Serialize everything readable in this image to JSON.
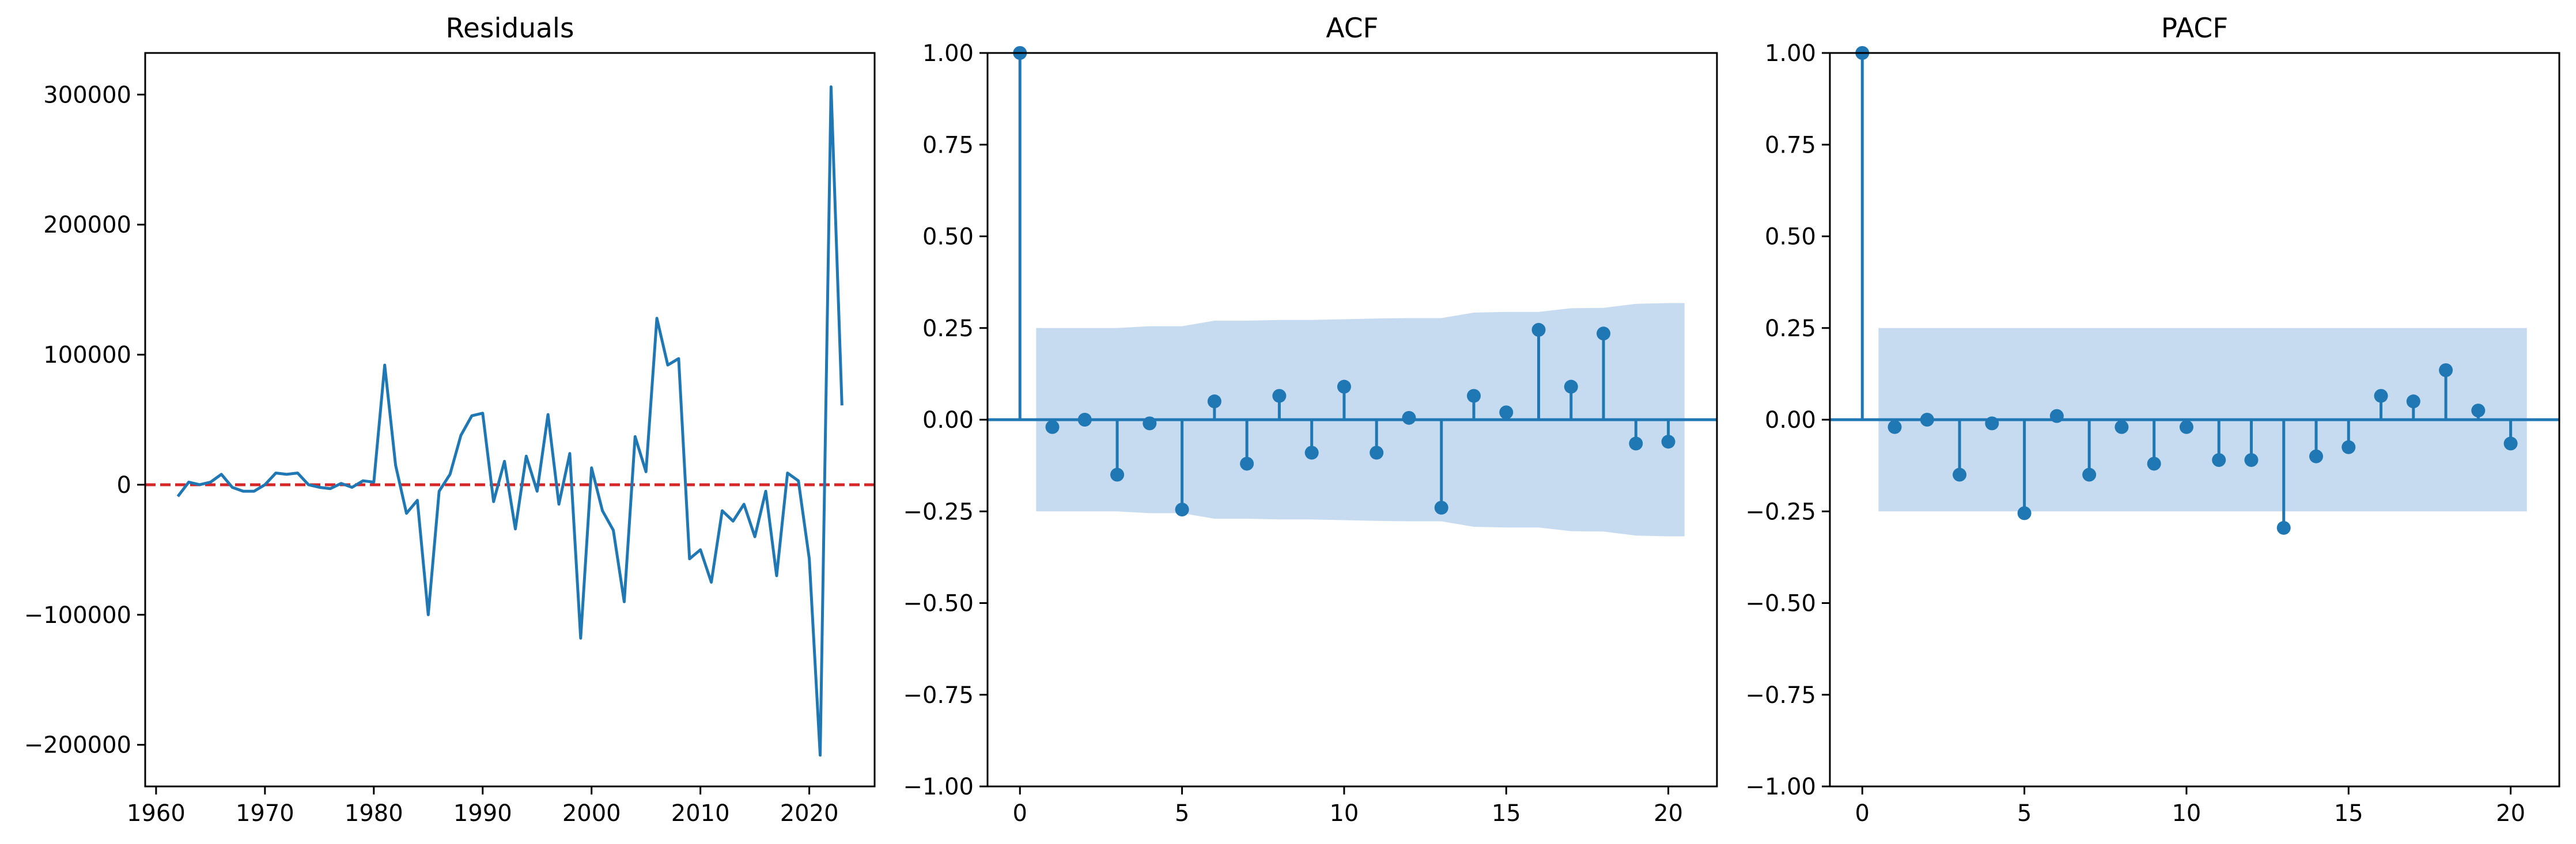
{
  "colors": {
    "line": "#1f77b4",
    "band": "#c6dbef",
    "zero_line": "#d62728",
    "axis": "#000000"
  },
  "chart_data": [
    {
      "type": "line",
      "title": "Residuals",
      "xlabel": "",
      "ylabel": "",
      "xlim": [
        1959,
        2026
      ],
      "ylim": [
        -232000,
        332000
      ],
      "xticks": [
        1960,
        1970,
        1980,
        1990,
        2000,
        2010,
        2020
      ],
      "yticks": [
        -200000,
        -100000,
        0,
        100000,
        200000,
        300000
      ],
      "ytick_labels": [
        "−200000",
        "−100000",
        "0",
        "100000",
        "200000",
        "300000"
      ],
      "reference_line": {
        "y": 0,
        "style": "dashed",
        "color": "red"
      },
      "series": [
        {
          "x": [
            1962,
            1963,
            1964,
            1965,
            1966,
            1967,
            1968,
            1969,
            1970,
            1971,
            1972,
            1973,
            1974,
            1975,
            1976,
            1977,
            1978,
            1979,
            1980,
            1981,
            1982,
            1983,
            1984,
            1985,
            1986,
            1987,
            1988,
            1989,
            1990,
            1991,
            1992,
            1993,
            1994,
            1995,
            1996,
            1997,
            1998,
            1999,
            2000,
            2001,
            2002,
            2003,
            2004,
            2005,
            2006,
            2007,
            2008,
            2009,
            2010,
            2011,
            2012,
            2013,
            2014,
            2015,
            2016,
            2017,
            2018,
            2019,
            2020,
            2021,
            2022,
            2023
          ],
          "y": [
            -9000,
            2000,
            0,
            2000,
            8000,
            -2000,
            -5000,
            -5000,
            0,
            9000,
            8000,
            9000,
            0,
            -2000,
            -3000,
            1000,
            -2000,
            3000,
            2000,
            92000,
            15000,
            -22000,
            -12000,
            -100000,
            -5000,
            8000,
            38000,
            53000,
            55000,
            -13000,
            18000,
            -34000,
            22000,
            -5000,
            54000,
            -15000,
            24000,
            -118000,
            13000,
            -20000,
            -35000,
            -90000,
            37000,
            10000,
            128000,
            92000,
            97000,
            -57000,
            -50000,
            -75000,
            -20000,
            -28000,
            -15000,
            -40000,
            -5000,
            -70000,
            9000,
            3000,
            -57000,
            -208000,
            306000,
            61000
          ]
        }
      ]
    },
    {
      "type": "stem",
      "title": "ACF",
      "xlabel": "",
      "ylabel": "",
      "xlim": [
        -1,
        21.5
      ],
      "ylim": [
        -1,
        1
      ],
      "xticks": [
        0,
        5,
        10,
        15,
        20
      ],
      "yticks": [
        -1.0,
        -0.75,
        -0.5,
        -0.25,
        0.0,
        0.25,
        0.5,
        0.75,
        1.0
      ],
      "ytick_labels": [
        "−1.00",
        "−0.75",
        "−0.50",
        "−0.25",
        "0.00",
        "0.25",
        "0.50",
        "0.75",
        "1.00"
      ],
      "lags": [
        0,
        1,
        2,
        3,
        4,
        5,
        6,
        7,
        8,
        9,
        10,
        11,
        12,
        13,
        14,
        15,
        16,
        17,
        18,
        19,
        20
      ],
      "values": [
        1.0,
        -0.02,
        0.0,
        -0.15,
        -0.01,
        -0.245,
        0.05,
        -0.12,
        0.065,
        -0.09,
        0.09,
        -0.09,
        0.005,
        -0.24,
        0.065,
        0.02,
        0.245,
        0.09,
        0.235,
        -0.065,
        -0.06
      ],
      "confidence_band": {
        "lags": [
          0.5,
          1,
          2,
          3,
          4,
          5,
          6,
          7,
          8,
          9,
          10,
          11,
          12,
          13,
          14,
          15,
          16,
          17,
          18,
          19,
          20,
          20.5
        ],
        "upper": [
          0.25,
          0.25,
          0.25,
          0.25,
          0.255,
          0.255,
          0.27,
          0.27,
          0.272,
          0.272,
          0.274,
          0.276,
          0.277,
          0.277,
          0.292,
          0.294,
          0.294,
          0.304,
          0.305,
          0.316,
          0.318,
          0.318
        ]
      }
    },
    {
      "type": "stem",
      "title": "PACF",
      "xlabel": "",
      "ylabel": "",
      "xlim": [
        -1,
        21.5
      ],
      "ylim": [
        -1,
        1
      ],
      "xticks": [
        0,
        5,
        10,
        15,
        20
      ],
      "yticks": [
        -1.0,
        -0.75,
        -0.5,
        -0.25,
        0.0,
        0.25,
        0.5,
        0.75,
        1.0
      ],
      "ytick_labels": [
        "−1.00",
        "−0.75",
        "−0.50",
        "−0.25",
        "0.00",
        "0.25",
        "0.50",
        "0.75",
        "1.00"
      ],
      "lags": [
        0,
        1,
        2,
        3,
        4,
        5,
        6,
        7,
        8,
        9,
        10,
        11,
        12,
        13,
        14,
        15,
        16,
        17,
        18,
        19,
        20
      ],
      "values": [
        1.0,
        -0.02,
        0.0,
        -0.15,
        -0.01,
        -0.255,
        0.01,
        -0.15,
        -0.02,
        -0.12,
        -0.02,
        -0.11,
        -0.11,
        -0.295,
        -0.1,
        -0.075,
        0.065,
        0.05,
        0.135,
        0.025,
        -0.065
      ],
      "confidence_band": {
        "lags": [
          0.5,
          20.5
        ],
        "upper": [
          0.25,
          0.25
        ]
      }
    }
  ]
}
